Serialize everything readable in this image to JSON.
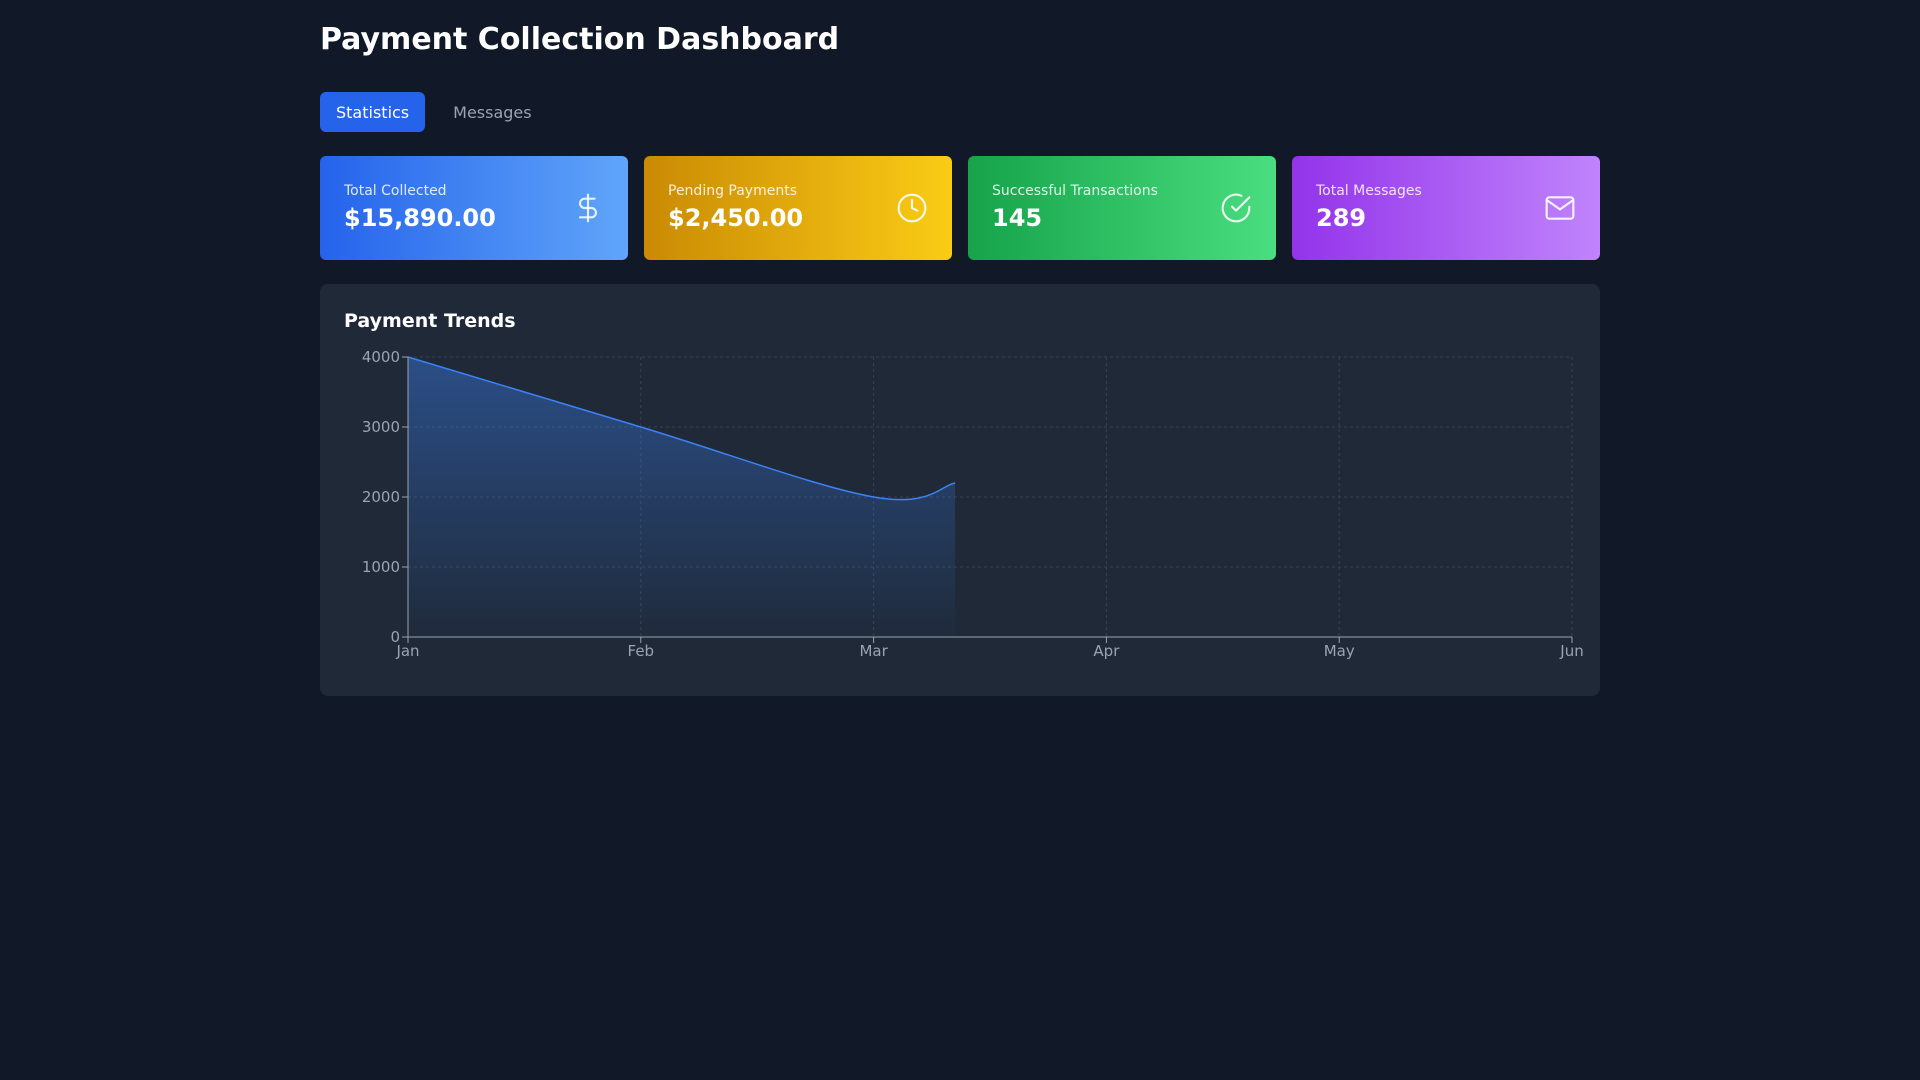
{
  "header": {
    "title": "Payment Collection Dashboard"
  },
  "tabs": [
    {
      "label": "Statistics",
      "active": true
    },
    {
      "label": "Messages",
      "active": false
    }
  ],
  "cards": [
    {
      "label": "Total Collected",
      "value": "$15,890.00",
      "icon": "dollar-icon",
      "color": "#2563eb"
    },
    {
      "label": "Pending Payments",
      "value": "$2,450.00",
      "icon": "clock-icon",
      "color": "#ca8a04"
    },
    {
      "label": "Successful Transactions",
      "value": "145",
      "icon": "check-circle-icon",
      "color": "#16a34a"
    },
    {
      "label": "Total Messages",
      "value": "289",
      "icon": "mail-icon",
      "color": "#9333ea"
    }
  ],
  "chart": {
    "title": "Payment Trends"
  },
  "chart_data": {
    "type": "area",
    "title": "Payment Trends",
    "categories": [
      "Jan",
      "Feb",
      "Mar",
      "Apr",
      "May",
      "Jun"
    ],
    "x": [
      0,
      1,
      2,
      2.35
    ],
    "values": [
      4000,
      3000,
      2000,
      2200
    ],
    "y_ticks": [
      0,
      1000,
      2000,
      3000,
      4000
    ],
    "ylim": [
      0,
      4000
    ],
    "grid": true,
    "legend": "none",
    "line_color": "#3b82f6",
    "fill_color": "#3b82f6"
  }
}
